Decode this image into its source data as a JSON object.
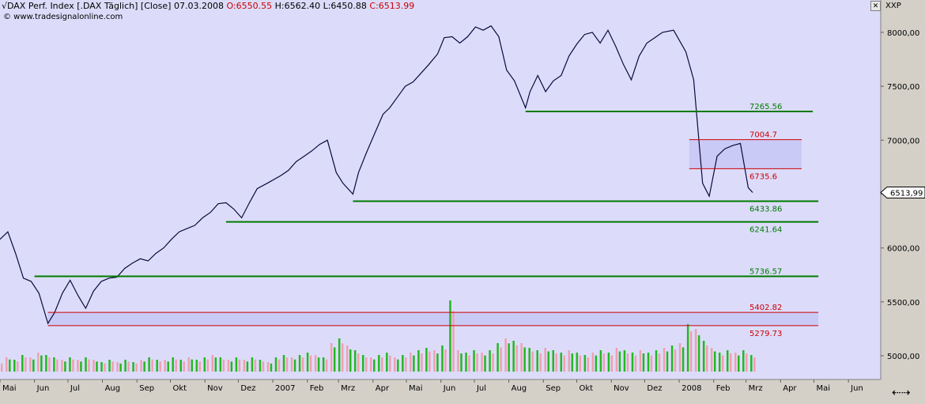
{
  "header": {
    "title": "√DAX Perf. Index [.DAX Täglich] [Close] 07.03.2008 ",
    "open": "O:6550.55",
    "high": "H:6562.40",
    "low": "L:6450.88",
    "close": "C:6513.99",
    "source": "© www.tradesignalonline.com",
    "symbol": "XXP"
  },
  "colors": {
    "plot_bg": "#dcdcfa",
    "frame_bg": "#d4d0c8",
    "price_line": "#0a0a3c",
    "support": "#007a00",
    "resistance_box": "#cc0000",
    "volume_up": "#22b822",
    "volume_down": "#f0a0b0"
  },
  "chart_data": {
    "type": "line",
    "series_name": "DAX",
    "y_ticks": [
      "5000,00",
      "5500,00",
      "6000,00",
      "6500,00",
      "7000,00",
      "7500,00",
      "8000,00"
    ],
    "y_tick_values": [
      5000,
      5500,
      6000,
      6500,
      7000,
      7500,
      8000
    ],
    "ylim": [
      4780,
      8300
    ],
    "x_labels": [
      "Mai",
      "Jun",
      "Jul",
      "Aug",
      "Sep",
      "Okt",
      "Nov",
      "Dez",
      "2007",
      "Feb",
      "Mrz",
      "Apr",
      "Mai",
      "Jun",
      "Jul",
      "Aug",
      "Sep",
      "Okt",
      "Nov",
      "Dez",
      "2008",
      "Feb",
      "Mrz",
      "Apr",
      "Mai",
      "Jun"
    ],
    "x_range": [
      "2006-05-01",
      "2008-06-30"
    ],
    "last_value_label": "6513,99",
    "levels": [
      {
        "label": "7265.56",
        "value": 7265.56,
        "color": "support",
        "from": "2007-08-16",
        "to": "2008-04-30"
      },
      {
        "label": "7004.7",
        "value": 7004.7,
        "color": "resistance",
        "from": "2008-01-10",
        "to": "2008-04-20"
      },
      {
        "label": "6735.6",
        "value": 6735.6,
        "color": "resistance",
        "from": "2008-01-10",
        "to": "2008-04-20"
      },
      {
        "label": "6433.86",
        "value": 6433.86,
        "color": "support",
        "from": "2007-03-14",
        "to": "2008-05-05"
      },
      {
        "label": "6241.64",
        "value": 6241.64,
        "color": "support",
        "from": "2006-11-20",
        "to": "2008-05-05"
      },
      {
        "label": "5736.57",
        "value": 5736.57,
        "color": "support",
        "from": "2006-06-01",
        "to": "2008-05-05"
      },
      {
        "label": "5402.82",
        "value": 5402.82,
        "color": "resistance",
        "from": "2006-06-13",
        "to": "2008-05-05"
      },
      {
        "label": "5279.73",
        "value": 5279.73,
        "color": "resistance",
        "from": "2006-06-13",
        "to": "2008-05-05"
      }
    ],
    "boxes": [
      {
        "from": "2008-01-10",
        "to": "2008-04-20",
        "low": 6735.6,
        "high": 7004.7
      },
      {
        "from": "2006-06-13",
        "to": "2008-05-05",
        "low": 5279.73,
        "high": 5402.82
      }
    ],
    "x": [
      "2006-05-01",
      "2006-05-08",
      "2006-05-15",
      "2006-05-22",
      "2006-05-29",
      "2006-06-05",
      "2006-06-13",
      "2006-06-19",
      "2006-06-26",
      "2006-07-03",
      "2006-07-10",
      "2006-07-17",
      "2006-07-24",
      "2006-07-31",
      "2006-08-07",
      "2006-08-14",
      "2006-08-21",
      "2006-08-28",
      "2006-09-04",
      "2006-09-11",
      "2006-09-18",
      "2006-09-25",
      "2006-10-02",
      "2006-10-09",
      "2006-10-16",
      "2006-10-23",
      "2006-10-30",
      "2006-11-06",
      "2006-11-13",
      "2006-11-20",
      "2006-11-27",
      "2006-12-04",
      "2006-12-11",
      "2006-12-18",
      "2006-12-27",
      "2007-01-08",
      "2007-01-15",
      "2007-01-22",
      "2007-01-29",
      "2007-02-05",
      "2007-02-12",
      "2007-02-19",
      "2007-02-27",
      "2007-03-05",
      "2007-03-14",
      "2007-03-19",
      "2007-03-26",
      "2007-04-02",
      "2007-04-10",
      "2007-04-16",
      "2007-04-23",
      "2007-04-30",
      "2007-05-07",
      "2007-05-14",
      "2007-05-21",
      "2007-05-29",
      "2007-06-04",
      "2007-06-11",
      "2007-06-18",
      "2007-06-25",
      "2007-07-02",
      "2007-07-09",
      "2007-07-16",
      "2007-07-23",
      "2007-07-30",
      "2007-08-06",
      "2007-08-16",
      "2007-08-20",
      "2007-08-27",
      "2007-09-03",
      "2007-09-10",
      "2007-09-17",
      "2007-09-24",
      "2007-10-01",
      "2007-10-08",
      "2007-10-15",
      "2007-10-22",
      "2007-10-29",
      "2007-11-05",
      "2007-11-12",
      "2007-11-19",
      "2007-11-26",
      "2007-12-03",
      "2007-12-10",
      "2007-12-17",
      "2007-12-27",
      "2008-01-07",
      "2008-01-14",
      "2008-01-22",
      "2008-01-28",
      "2008-02-04",
      "2008-02-11",
      "2008-02-18",
      "2008-02-25",
      "2008-03-03",
      "2008-03-07"
    ],
    "values": [
      6080,
      6150,
      5950,
      5720,
      5690,
      5580,
      5300,
      5400,
      5580,
      5700,
      5560,
      5440,
      5600,
      5690,
      5720,
      5730,
      5810,
      5860,
      5900,
      5880,
      5950,
      6000,
      6080,
      6150,
      6180,
      6210,
      6280,
      6330,
      6410,
      6420,
      6360,
      6280,
      6420,
      6550,
      6600,
      6670,
      6720,
      6800,
      6850,
      6900,
      6960,
      7000,
      6700,
      6600,
      6500,
      6700,
      6880,
      7050,
      7240,
      7300,
      7400,
      7500,
      7540,
      7620,
      7700,
      7800,
      7950,
      7960,
      7900,
      7960,
      8050,
      8020,
      8060,
      7960,
      7650,
      7550,
      7300,
      7450,
      7600,
      7450,
      7550,
      7600,
      7780,
      7890,
      7980,
      8000,
      7900,
      8020,
      7870,
      7700,
      7560,
      7780,
      7900,
      7950,
      8000,
      8020,
      7820,
      7560,
      6600,
      6480,
      6850,
      6920,
      6950,
      6970,
      6560,
      6513.99
    ],
    "volume": [
      [
        4,
        "u"
      ],
      [
        6,
        "d"
      ],
      [
        5,
        "u"
      ],
      [
        7,
        "u"
      ],
      [
        6,
        "d"
      ],
      [
        8,
        "d"
      ],
      [
        7,
        "u"
      ],
      [
        6,
        "u"
      ],
      [
        5,
        "d"
      ],
      [
        6,
        "u"
      ],
      [
        5,
        "d"
      ],
      [
        6,
        "u"
      ],
      [
        5,
        "d"
      ],
      [
        4,
        "u"
      ],
      [
        5,
        "u"
      ],
      [
        4,
        "d"
      ],
      [
        5,
        "u"
      ],
      [
        4,
        "u"
      ],
      [
        5,
        "d"
      ],
      [
        6,
        "u"
      ],
      [
        5,
        "u"
      ],
      [
        5,
        "d"
      ],
      [
        6,
        "u"
      ],
      [
        5,
        "u"
      ],
      [
        6,
        "d"
      ],
      [
        5,
        "u"
      ],
      [
        6,
        "u"
      ],
      [
        7,
        "d"
      ],
      [
        6,
        "u"
      ],
      [
        5,
        "d"
      ],
      [
        6,
        "u"
      ],
      [
        5,
        "d"
      ],
      [
        6,
        "u"
      ],
      [
        5,
        "u"
      ],
      [
        4,
        "d"
      ],
      [
        6,
        "u"
      ],
      [
        7,
        "u"
      ],
      [
        6,
        "d"
      ],
      [
        7,
        "u"
      ],
      [
        8,
        "u"
      ],
      [
        7,
        "d"
      ],
      [
        6,
        "u"
      ],
      [
        12,
        "d"
      ],
      [
        14,
        "u"
      ],
      [
        11,
        "d"
      ],
      [
        9,
        "u"
      ],
      [
        7,
        "u"
      ],
      [
        6,
        "d"
      ],
      [
        7,
        "u"
      ],
      [
        8,
        "u"
      ],
      [
        6,
        "d"
      ],
      [
        7,
        "u"
      ],
      [
        8,
        "d"
      ],
      [
        9,
        "u"
      ],
      [
        10,
        "u"
      ],
      [
        9,
        "d"
      ],
      [
        11,
        "u"
      ],
      [
        30,
        "u"
      ],
      [
        9,
        "d"
      ],
      [
        8,
        "u"
      ],
      [
        9,
        "u"
      ],
      [
        8,
        "d"
      ],
      [
        9,
        "u"
      ],
      [
        12,
        "u"
      ],
      [
        14,
        "d"
      ],
      [
        13,
        "u"
      ],
      [
        12,
        "d"
      ],
      [
        10,
        "u"
      ],
      [
        9,
        "u"
      ],
      [
        10,
        "d"
      ],
      [
        9,
        "u"
      ],
      [
        8,
        "u"
      ],
      [
        9,
        "d"
      ],
      [
        8,
        "u"
      ],
      [
        7,
        "u"
      ],
      [
        8,
        "d"
      ],
      [
        9,
        "u"
      ],
      [
        8,
        "u"
      ],
      [
        10,
        "d"
      ],
      [
        9,
        "u"
      ],
      [
        8,
        "u"
      ],
      [
        9,
        "d"
      ],
      [
        8,
        "u"
      ],
      [
        9,
        "u"
      ],
      [
        10,
        "d"
      ],
      [
        11,
        "u"
      ],
      [
        12,
        "d"
      ],
      [
        20,
        "u"
      ],
      [
        18,
        "d"
      ],
      [
        13,
        "u"
      ],
      [
        10,
        "d"
      ],
      [
        8,
        "u"
      ],
      [
        9,
        "u"
      ],
      [
        8,
        "d"
      ],
      [
        9,
        "u"
      ],
      [
        7,
        "u"
      ]
    ]
  }
}
